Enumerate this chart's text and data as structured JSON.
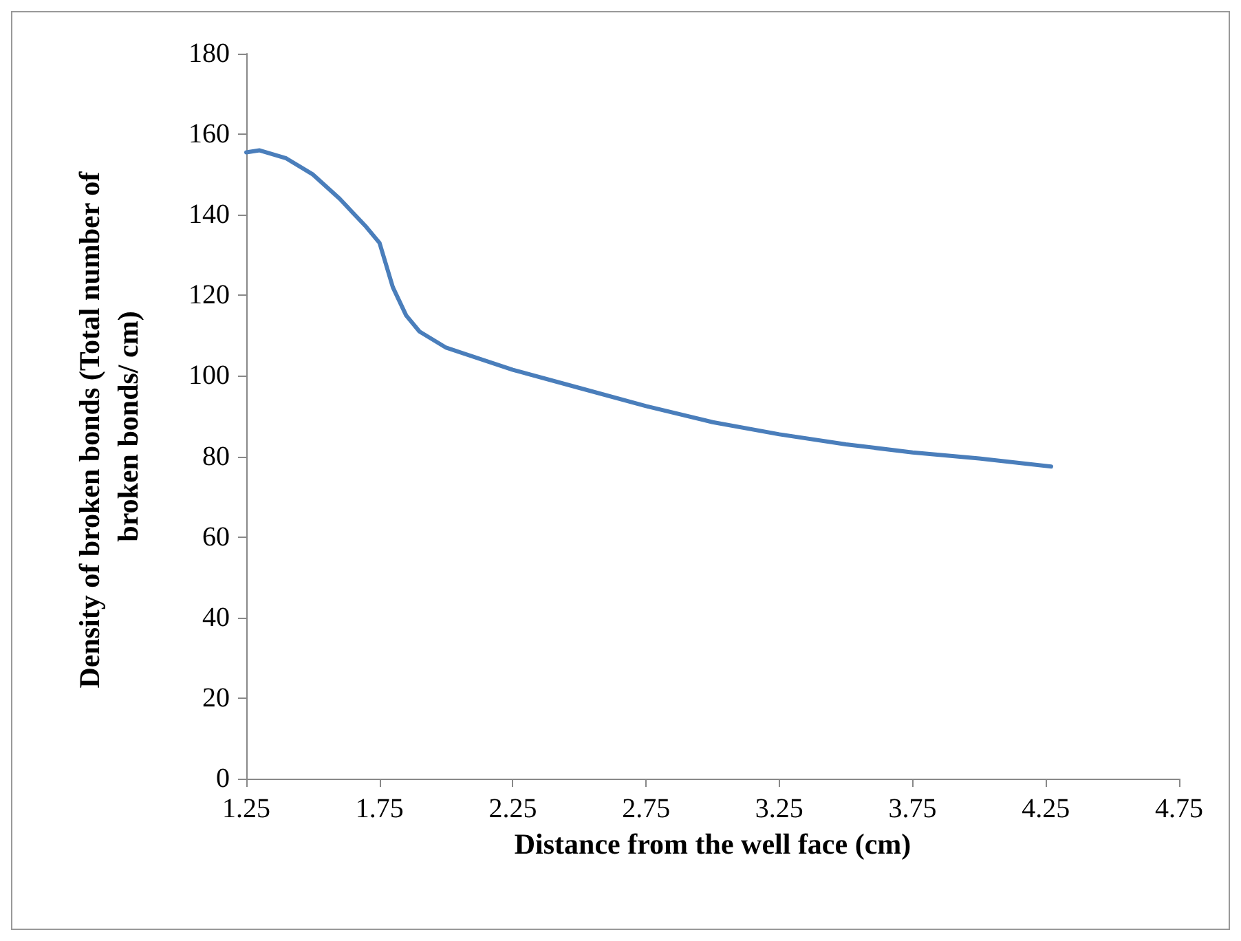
{
  "chart_data": {
    "type": "line",
    "xlabel": "Distance from the well face (cm)",
    "ylabel": "Density of broken bonds (Total number of broken bonds/ cm)",
    "x": [
      1.25,
      1.3,
      1.4,
      1.5,
      1.6,
      1.7,
      1.75,
      1.8,
      1.85,
      1.9,
      2.0,
      2.25,
      2.5,
      2.75,
      3.0,
      3.25,
      3.5,
      3.75,
      4.0,
      4.27
    ],
    "series": [
      {
        "color": "#4a7ebb",
        "values": [
          155.5,
          156,
          154,
          150,
          144,
          137,
          133,
          122,
          115,
          111,
          107,
          101.5,
          97,
          92.5,
          88.5,
          85.5,
          83,
          81,
          79.5,
          77.5
        ]
      }
    ],
    "xlim": [
      1.25,
      4.75
    ],
    "xticks": [
      1.25,
      1.75,
      2.25,
      2.75,
      3.25,
      3.75,
      4.25,
      4.75
    ],
    "ylim": [
      0,
      180
    ],
    "yticks": [
      0,
      20,
      40,
      60,
      80,
      100,
      120,
      140,
      160,
      180
    ],
    "grid": false,
    "marker": "none",
    "line_style": "solid"
  }
}
